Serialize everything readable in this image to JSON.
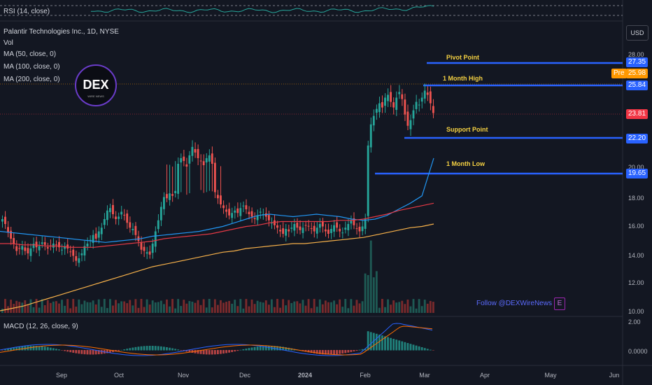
{
  "indicators": {
    "rsi_label": "RSI (14, close)",
    "symbol_label": "Palantir Technologies Inc., 1D, NYSE",
    "vol_label": "Vol",
    "ma50_label": "MA (50, close, 0)",
    "ma100_label": "MA (100, close, 0)",
    "ma200_label": "MA (200, close, 0)",
    "macd_label": "MACD (12, 26, close, 9)"
  },
  "currency_button": "USD",
  "follow_text": "Follow @DEXWireNews",
  "logo_text": "DEX",
  "logo_subtext": "WIRE NEWS",
  "price_tags": {
    "pre_label": "Pre",
    "pre_price": "25.98",
    "last_price": "23.81"
  },
  "colors": {
    "background": "#131722",
    "up": "#26a69a",
    "down": "#ef5350",
    "level_line": "#2962ff",
    "level_text": "#f5d142",
    "ma50": "#2196f3",
    "ma100": "#e53945",
    "ma200": "#f7b14a",
    "pre_tag": "#ff9800"
  },
  "chart_data": {
    "type": "candlestick",
    "symbol": "Palantir Technologies Inc.",
    "interval": "1D",
    "exchange": "NYSE",
    "x_tick_labels": [
      "Sep",
      "Oct",
      "Nov",
      "Dec",
      "2024",
      "Feb",
      "Mar",
      "Apr",
      "May",
      "Jun"
    ],
    "price_axis_ticks": [
      "28.00",
      "20.00",
      "18.00",
      "16.00",
      "14.00",
      "12.00",
      "10.00"
    ],
    "ylim": [
      10,
      29
    ],
    "key_levels": [
      {
        "label": "Pivot Point",
        "price": "27.35"
      },
      {
        "label": "1 Month High",
        "price": "25.84"
      },
      {
        "label": "Support Point",
        "price": "22.20"
      },
      {
        "label": "1 Month Low",
        "price": "19.65"
      }
    ],
    "close_series": [
      17.6,
      17.2,
      16.5,
      16.0,
      15.6,
      15.0,
      15.2,
      15.4,
      15.0,
      14.8,
      15.2,
      15.6,
      15.3,
      15.4,
      15.7,
      15.5,
      15.2,
      15.4,
      15.6,
      15.5,
      15.3,
      15.1,
      15.4,
      15.2,
      14.9,
      14.6,
      14.2,
      14.4,
      14.8,
      15.4,
      15.6,
      15.9,
      16.3,
      16.0,
      16.6,
      16.9,
      17.6,
      18.3,
      18.5,
      18.0,
      17.6,
      17.8,
      18.2,
      17.9,
      17.3,
      16.9,
      16.8,
      16.3,
      15.8,
      15.1,
      15.0,
      14.9,
      14.7,
      15.6,
      16.6,
      17.5,
      18.6,
      19.4,
      19.3,
      19.7,
      19.5,
      19.9,
      20.2,
      20.6,
      20.4,
      20.0,
      20.8,
      21.4,
      21.0,
      20.6,
      20.4,
      20.1,
      20.6,
      20.8,
      20.2,
      19.8,
      19.3,
      18.8,
      18.5,
      18.2,
      17.9,
      18.1,
      18.3,
      18.1,
      18.5,
      18.7,
      18.4,
      18.0,
      17.8,
      17.6,
      17.9,
      18.2,
      18.0,
      17.8,
      17.5,
      17.3,
      17.1,
      16.9,
      16.6,
      16.4,
      16.8,
      16.6,
      16.9,
      17.2,
      16.9,
      16.7,
      16.9,
      17.1,
      17.0,
      16.8,
      16.6,
      16.9,
      17.2,
      17.0,
      16.6,
      16.4,
      16.8,
      17.1,
      16.9,
      16.6,
      16.5,
      16.9,
      17.2,
      17.5,
      17.1,
      16.8,
      16.6,
      17.0,
      17.6,
      21.5,
      23.0,
      23.6,
      24.1,
      24.5,
      24.2,
      24.9,
      25.1,
      24.6,
      24.2,
      24.9,
      25.3,
      24.8,
      23.7,
      22.9,
      23.3,
      24.0,
      24.6,
      24.4,
      24.9,
      25.4,
      25.1,
      24.5,
      23.81
    ],
    "ma50": [
      16.6,
      16.5,
      16.4,
      16.3,
      16.2,
      16.1,
      16.0,
      15.9,
      15.8,
      15.7,
      15.8,
      15.9,
      16.0,
      16.2,
      16.3,
      16.4,
      16.5,
      16.6,
      16.8,
      17.0,
      17.3,
      17.6,
      17.9,
      18.0,
      17.9,
      17.8,
      17.9,
      18.0,
      17.9,
      17.8,
      17.6,
      17.5,
      17.6,
      17.9,
      18.4,
      18.9,
      19.5,
      20.6
    ],
    "ma100": [
      15.6,
      15.6,
      15.5,
      15.5,
      15.4,
      15.4,
      15.3,
      15.3,
      15.3,
      15.4,
      15.5,
      15.6,
      15.7,
      15.8,
      16.0,
      16.1,
      16.2,
      16.3,
      16.4,
      16.6,
      16.8,
      17.0,
      17.1,
      17.3,
      17.4,
      17.4,
      17.4,
      17.4,
      17.4,
      17.5,
      17.5,
      17.6,
      17.8,
      18.0,
      18.3,
      18.5,
      18.7,
      18.9
    ],
    "ma200": [
      10.0,
      10.2,
      10.4,
      10.7,
      11.0,
      11.3,
      11.6,
      11.9,
      12.2,
      12.5,
      12.8,
      13.1,
      13.4,
      13.7,
      13.9,
      14.1,
      14.3,
      14.5,
      14.7,
      14.9,
      15.0,
      15.2,
      15.3,
      15.4,
      15.5,
      15.6,
      15.6,
      15.7,
      15.8,
      15.9,
      16.0,
      16.1,
      16.3,
      16.5,
      16.7,
      16.9,
      17.0,
      17.2
    ]
  }
}
